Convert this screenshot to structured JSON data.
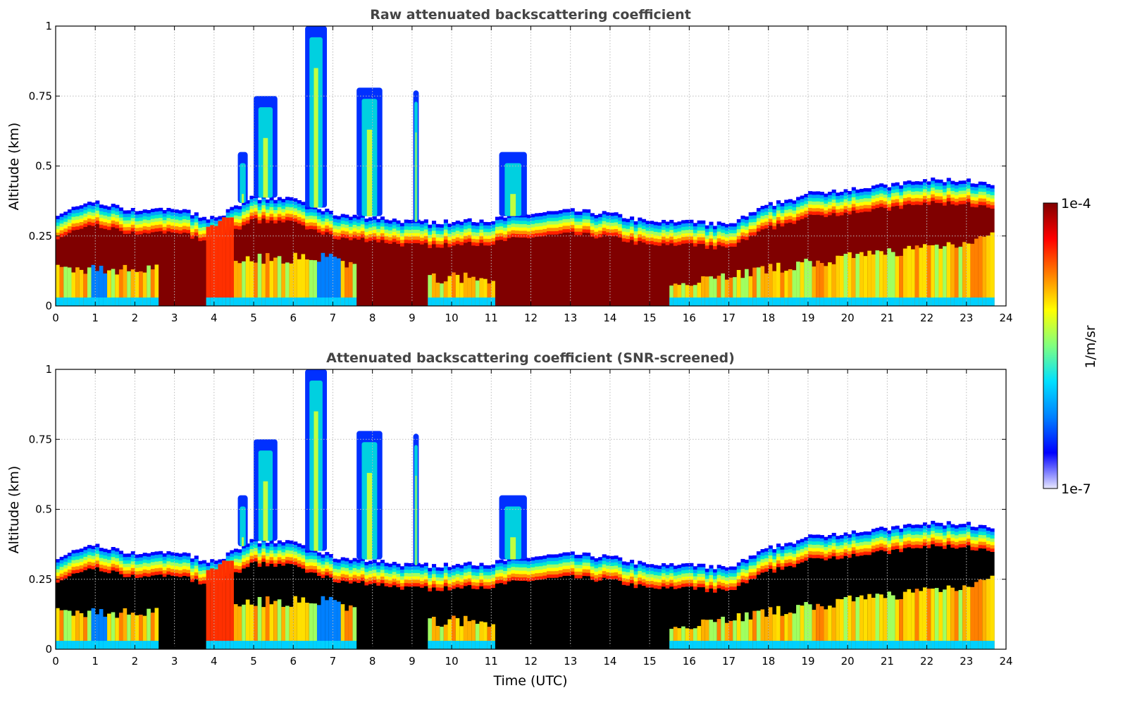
{
  "chart_data": [
    {
      "type": "heatmap",
      "title": "Raw attenuated backscattering coefficient",
      "xlabel": "",
      "ylabel": "Altitude (km)",
      "xlim": [
        0,
        24
      ],
      "ylim": [
        0,
        1
      ],
      "xticks": [
        "0",
        "1",
        "2",
        "3",
        "4",
        "5",
        "6",
        "7",
        "8",
        "9",
        "10",
        "11",
        "12",
        "13",
        "14",
        "15",
        "16",
        "17",
        "18",
        "19",
        "20",
        "21",
        "22",
        "23",
        "24"
      ],
      "yticks": [
        "0",
        "0.25",
        "0.5",
        "0.75",
        "1"
      ],
      "grid": true,
      "core_color": "#800000"
    },
    {
      "type": "heatmap",
      "title": "Attenuated backscattering coefficient (SNR-screened)",
      "xlabel": "Time (UTC)",
      "ylabel": "Altitude (km)",
      "xlim": [
        0,
        24
      ],
      "ylim": [
        0,
        1
      ],
      "xticks": [
        "0",
        "1",
        "2",
        "3",
        "4",
        "5",
        "6",
        "7",
        "8",
        "9",
        "10",
        "11",
        "12",
        "13",
        "14",
        "15",
        "16",
        "17",
        "18",
        "19",
        "20",
        "21",
        "22",
        "23",
        "24"
      ],
      "yticks": [
        "0",
        "0.25",
        "0.5",
        "0.75",
        "1"
      ],
      "grid": true,
      "core_color": "#000000"
    }
  ],
  "layer_top_km": {
    "hours": [
      0,
      1,
      2,
      3,
      4,
      5,
      6,
      7,
      8,
      9,
      10,
      11,
      12,
      13,
      14,
      15,
      16,
      17,
      18,
      19,
      20,
      21,
      22,
      23,
      23.65
    ],
    "values": [
      0.33,
      0.37,
      0.34,
      0.35,
      0.31,
      0.39,
      0.38,
      0.33,
      0.32,
      0.3,
      0.3,
      0.31,
      0.33,
      0.34,
      0.33,
      0.3,
      0.3,
      0.29,
      0.36,
      0.4,
      0.42,
      0.43,
      0.45,
      0.45,
      0.43
    ]
  },
  "plumes": [
    {
      "start": 4.6,
      "end": 4.85,
      "top_km": 0.55
    },
    {
      "start": 5.0,
      "end": 5.6,
      "top_km": 0.75
    },
    {
      "start": 6.3,
      "end": 6.85,
      "top_km": 1.0
    },
    {
      "start": 7.6,
      "end": 8.25,
      "top_km": 0.78
    },
    {
      "start": 9.03,
      "end": 9.17,
      "top_km": 0.77
    },
    {
      "start": 11.2,
      "end": 11.9,
      "top_km": 0.55
    }
  ],
  "colorbar": {
    "label": "1/m/sr",
    "max_label": "1e-4",
    "min_label": "1e-7",
    "colors": [
      "#800000",
      "#ff0000",
      "#ff8000",
      "#ffff00",
      "#80ff80",
      "#00e0ff",
      "#0080ff",
      "#0000ff",
      "#e8e8ff"
    ]
  }
}
